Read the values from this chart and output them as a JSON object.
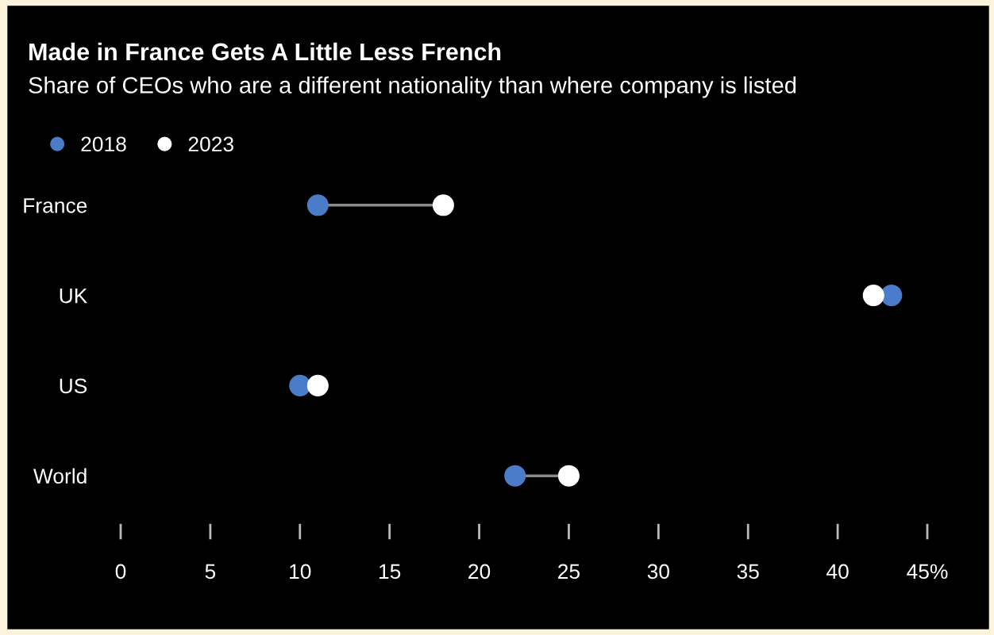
{
  "chart_data": {
    "type": "scatter",
    "title": "Made in France Gets A Little Less French",
    "subtitle": "Share of CEOs who are a different nationality than where company is listed",
    "categories": [
      "France",
      "UK",
      "US",
      "World"
    ],
    "series": [
      {
        "name": "2018",
        "color": "#4a7cc9",
        "values": [
          11,
          43,
          10,
          22
        ]
      },
      {
        "name": "2023",
        "color": "#ffffff",
        "values": [
          18,
          42,
          11,
          25
        ]
      }
    ],
    "orientation": "horizontal",
    "xlim": [
      0,
      45
    ],
    "xticks": [
      0,
      5,
      10,
      15,
      20,
      25,
      30,
      35,
      40,
      {
        "value": 45,
        "label": "45%"
      }
    ],
    "grid": false,
    "legend": "top left",
    "marker": "circle"
  }
}
